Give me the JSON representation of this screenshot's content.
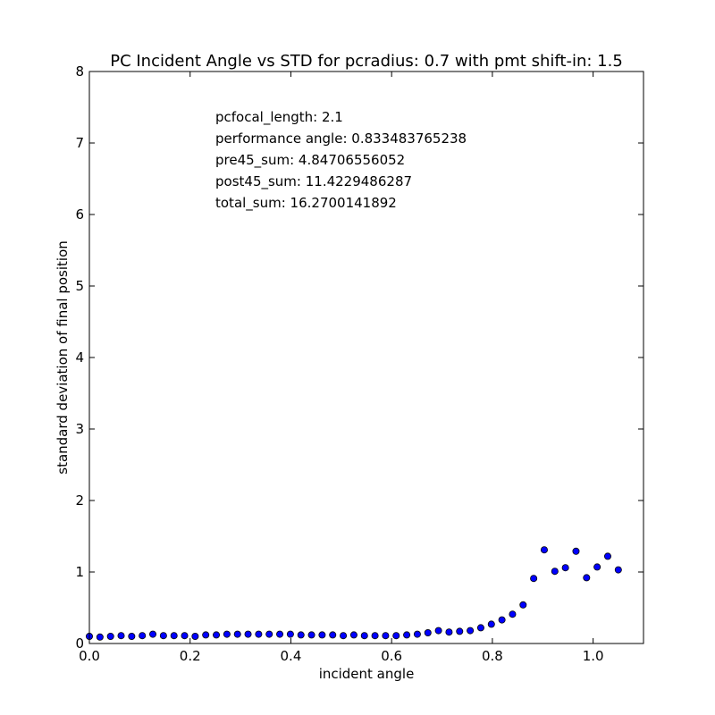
{
  "chart_data": {
    "type": "scatter",
    "title": "PC Incident Angle vs STD for pcradius: 0.7 with pmt shift-in: 1.5",
    "xlabel": "incident angle",
    "ylabel": "standard deviation of final position",
    "xlim": [
      0.0,
      1.1
    ],
    "ylim": [
      0,
      8
    ],
    "grid": false,
    "x_ticks": [
      "0.0",
      "0.2",
      "0.4",
      "0.6",
      "0.8",
      "1.0"
    ],
    "y_ticks": [
      "0",
      "1",
      "2",
      "3",
      "4",
      "5",
      "6",
      "7",
      "8"
    ],
    "marker_color": "#0000ff",
    "annotations": [
      "pcfocal_length: 2.1",
      "performance angle: 0.833483765238",
      "pre45_sum: 4.84706556052",
      "post45_sum: 11.4229486287",
      "total_sum: 16.2700141892"
    ],
    "points": [
      [
        0.0,
        0.1
      ],
      [
        0.021,
        0.09
      ],
      [
        0.042,
        0.1
      ],
      [
        0.063,
        0.11
      ],
      [
        0.084,
        0.1
      ],
      [
        0.105,
        0.11
      ],
      [
        0.126,
        0.13
      ],
      [
        0.147,
        0.11
      ],
      [
        0.168,
        0.11
      ],
      [
        0.189,
        0.11
      ],
      [
        0.21,
        0.1
      ],
      [
        0.231,
        0.12
      ],
      [
        0.252,
        0.12
      ],
      [
        0.273,
        0.13
      ],
      [
        0.294,
        0.13
      ],
      [
        0.315,
        0.13
      ],
      [
        0.336,
        0.13
      ],
      [
        0.357,
        0.13
      ],
      [
        0.378,
        0.13
      ],
      [
        0.399,
        0.13
      ],
      [
        0.42,
        0.12
      ],
      [
        0.441,
        0.12
      ],
      [
        0.462,
        0.12
      ],
      [
        0.483,
        0.12
      ],
      [
        0.504,
        0.11
      ],
      [
        0.525,
        0.12
      ],
      [
        0.546,
        0.11
      ],
      [
        0.567,
        0.11
      ],
      [
        0.588,
        0.11
      ],
      [
        0.609,
        0.11
      ],
      [
        0.63,
        0.12
      ],
      [
        0.651,
        0.13
      ],
      [
        0.672,
        0.15
      ],
      [
        0.693,
        0.18
      ],
      [
        0.714,
        0.16
      ],
      [
        0.735,
        0.17
      ],
      [
        0.756,
        0.18
      ],
      [
        0.777,
        0.22
      ],
      [
        0.798,
        0.27
      ],
      [
        0.819,
        0.33
      ],
      [
        0.84,
        0.41
      ],
      [
        0.861,
        0.54
      ],
      [
        0.882,
        0.91
      ],
      [
        0.903,
        1.31
      ],
      [
        0.924,
        1.01
      ],
      [
        0.945,
        1.06
      ],
      [
        0.966,
        1.29
      ],
      [
        0.987,
        0.92
      ],
      [
        1.008,
        1.07
      ],
      [
        1.029,
        1.22
      ],
      [
        1.05,
        1.03
      ]
    ]
  }
}
